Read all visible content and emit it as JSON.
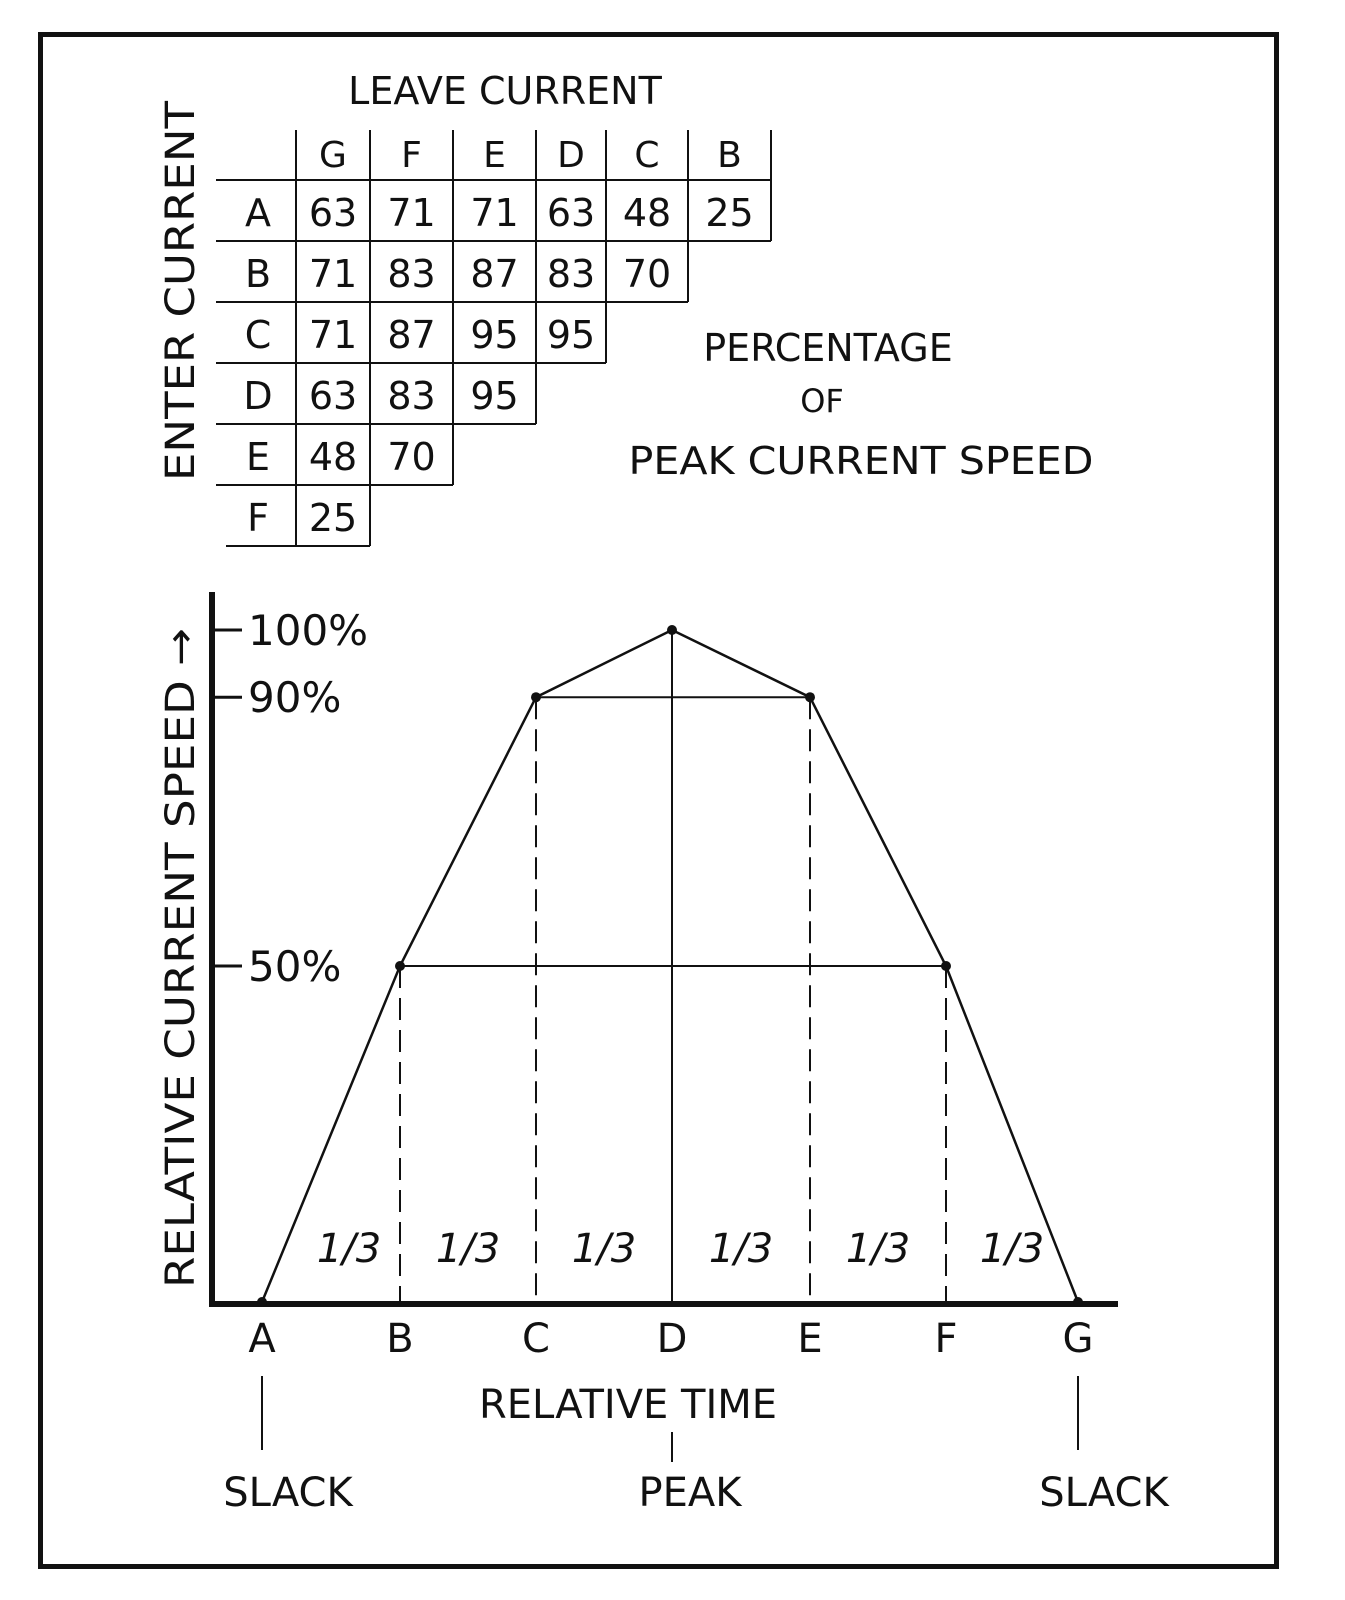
{
  "table": {
    "title": "LEAVE CURRENT",
    "row_axis_label": "ENTER CURRENT",
    "columns": [
      "G",
      "F",
      "E",
      "D",
      "C",
      "B"
    ],
    "rows": [
      {
        "label": "A",
        "values": [
          "63",
          "71",
          "71",
          "63",
          "48",
          "25"
        ]
      },
      {
        "label": "B",
        "values": [
          "71",
          "83",
          "87",
          "83",
          "70"
        ]
      },
      {
        "label": "C",
        "values": [
          "71",
          "87",
          "95",
          "95"
        ]
      },
      {
        "label": "D",
        "values": [
          "63",
          "83",
          "95"
        ]
      },
      {
        "label": "E",
        "values": [
          "48",
          "70"
        ]
      },
      {
        "label": "F",
        "values": [
          "25"
        ]
      }
    ],
    "caption_lines": [
      "PERCENTAGE",
      "OF",
      "PEAK CURRENT SPEED"
    ]
  },
  "chart_data": {
    "type": "line",
    "ylabel": "RELATIVE CURRENT SPEED →",
    "xlabel": "RELATIVE TIME",
    "categories": [
      "A",
      "B",
      "C",
      "D",
      "E",
      "F",
      "G"
    ],
    "values": [
      0,
      50,
      90,
      100,
      90,
      50,
      0
    ],
    "y_ticks": [
      {
        "value": 100,
        "label": "100%"
      },
      {
        "value": 90,
        "label": "90%"
      },
      {
        "value": 50,
        "label": "50%"
      }
    ],
    "ylim": [
      0,
      100
    ],
    "interval_label": "1/3",
    "interval_count": 6,
    "annotations": [
      {
        "at": "A",
        "text": "SLACK"
      },
      {
        "at": "D",
        "text": "PEAK"
      },
      {
        "at": "G",
        "text": "SLACK"
      }
    ]
  }
}
